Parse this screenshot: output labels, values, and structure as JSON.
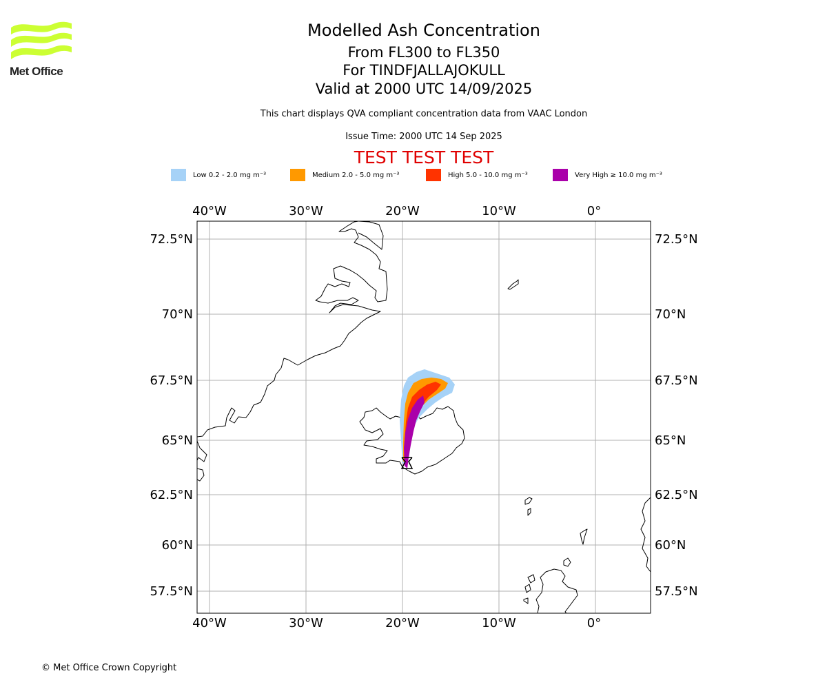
{
  "logo": {
    "label": "Met Office",
    "colors": [
      "#ccff33",
      "#222222"
    ],
    "icon": "met-office-wave-logo"
  },
  "title": {
    "line1": "Modelled Ash Concentration",
    "line2": "From FL300 to FL350",
    "line3": "For TINDFJALLAJOKULL",
    "line4": "Valid at 2000 UTC 14/09/2025"
  },
  "description": "This chart displays QVA compliant concentration data from VAAC London",
  "issue_time": "Issue Time: 2000 UTC 14 Sep 2025",
  "test_banner": "TEST TEST TEST",
  "legend": [
    {
      "label": "Low 0.2 - 2.0 mg m⁻³",
      "color": "#a6d2f7"
    },
    {
      "label": "Medium 2.0 - 5.0 mg m⁻³",
      "color": "#ff9900"
    },
    {
      "label": "High 5.0 - 10.0 mg m⁻³",
      "color": "#ff3300"
    },
    {
      "label": "Very High  ≥  10.0 mg m⁻³",
      "color": "#aa00aa"
    }
  ],
  "map": {
    "lon_ticks": [
      "40°W",
      "30°W",
      "20°W",
      "10°W",
      "0°"
    ],
    "lat_ticks": [
      "72.5°N",
      "70°N",
      "67.5°N",
      "65°N",
      "62.5°N",
      "60°N",
      "57.5°N"
    ],
    "volcano_icon": "volcano-marker-icon"
  },
  "copyright": "© Met Office Crown Copyright"
}
